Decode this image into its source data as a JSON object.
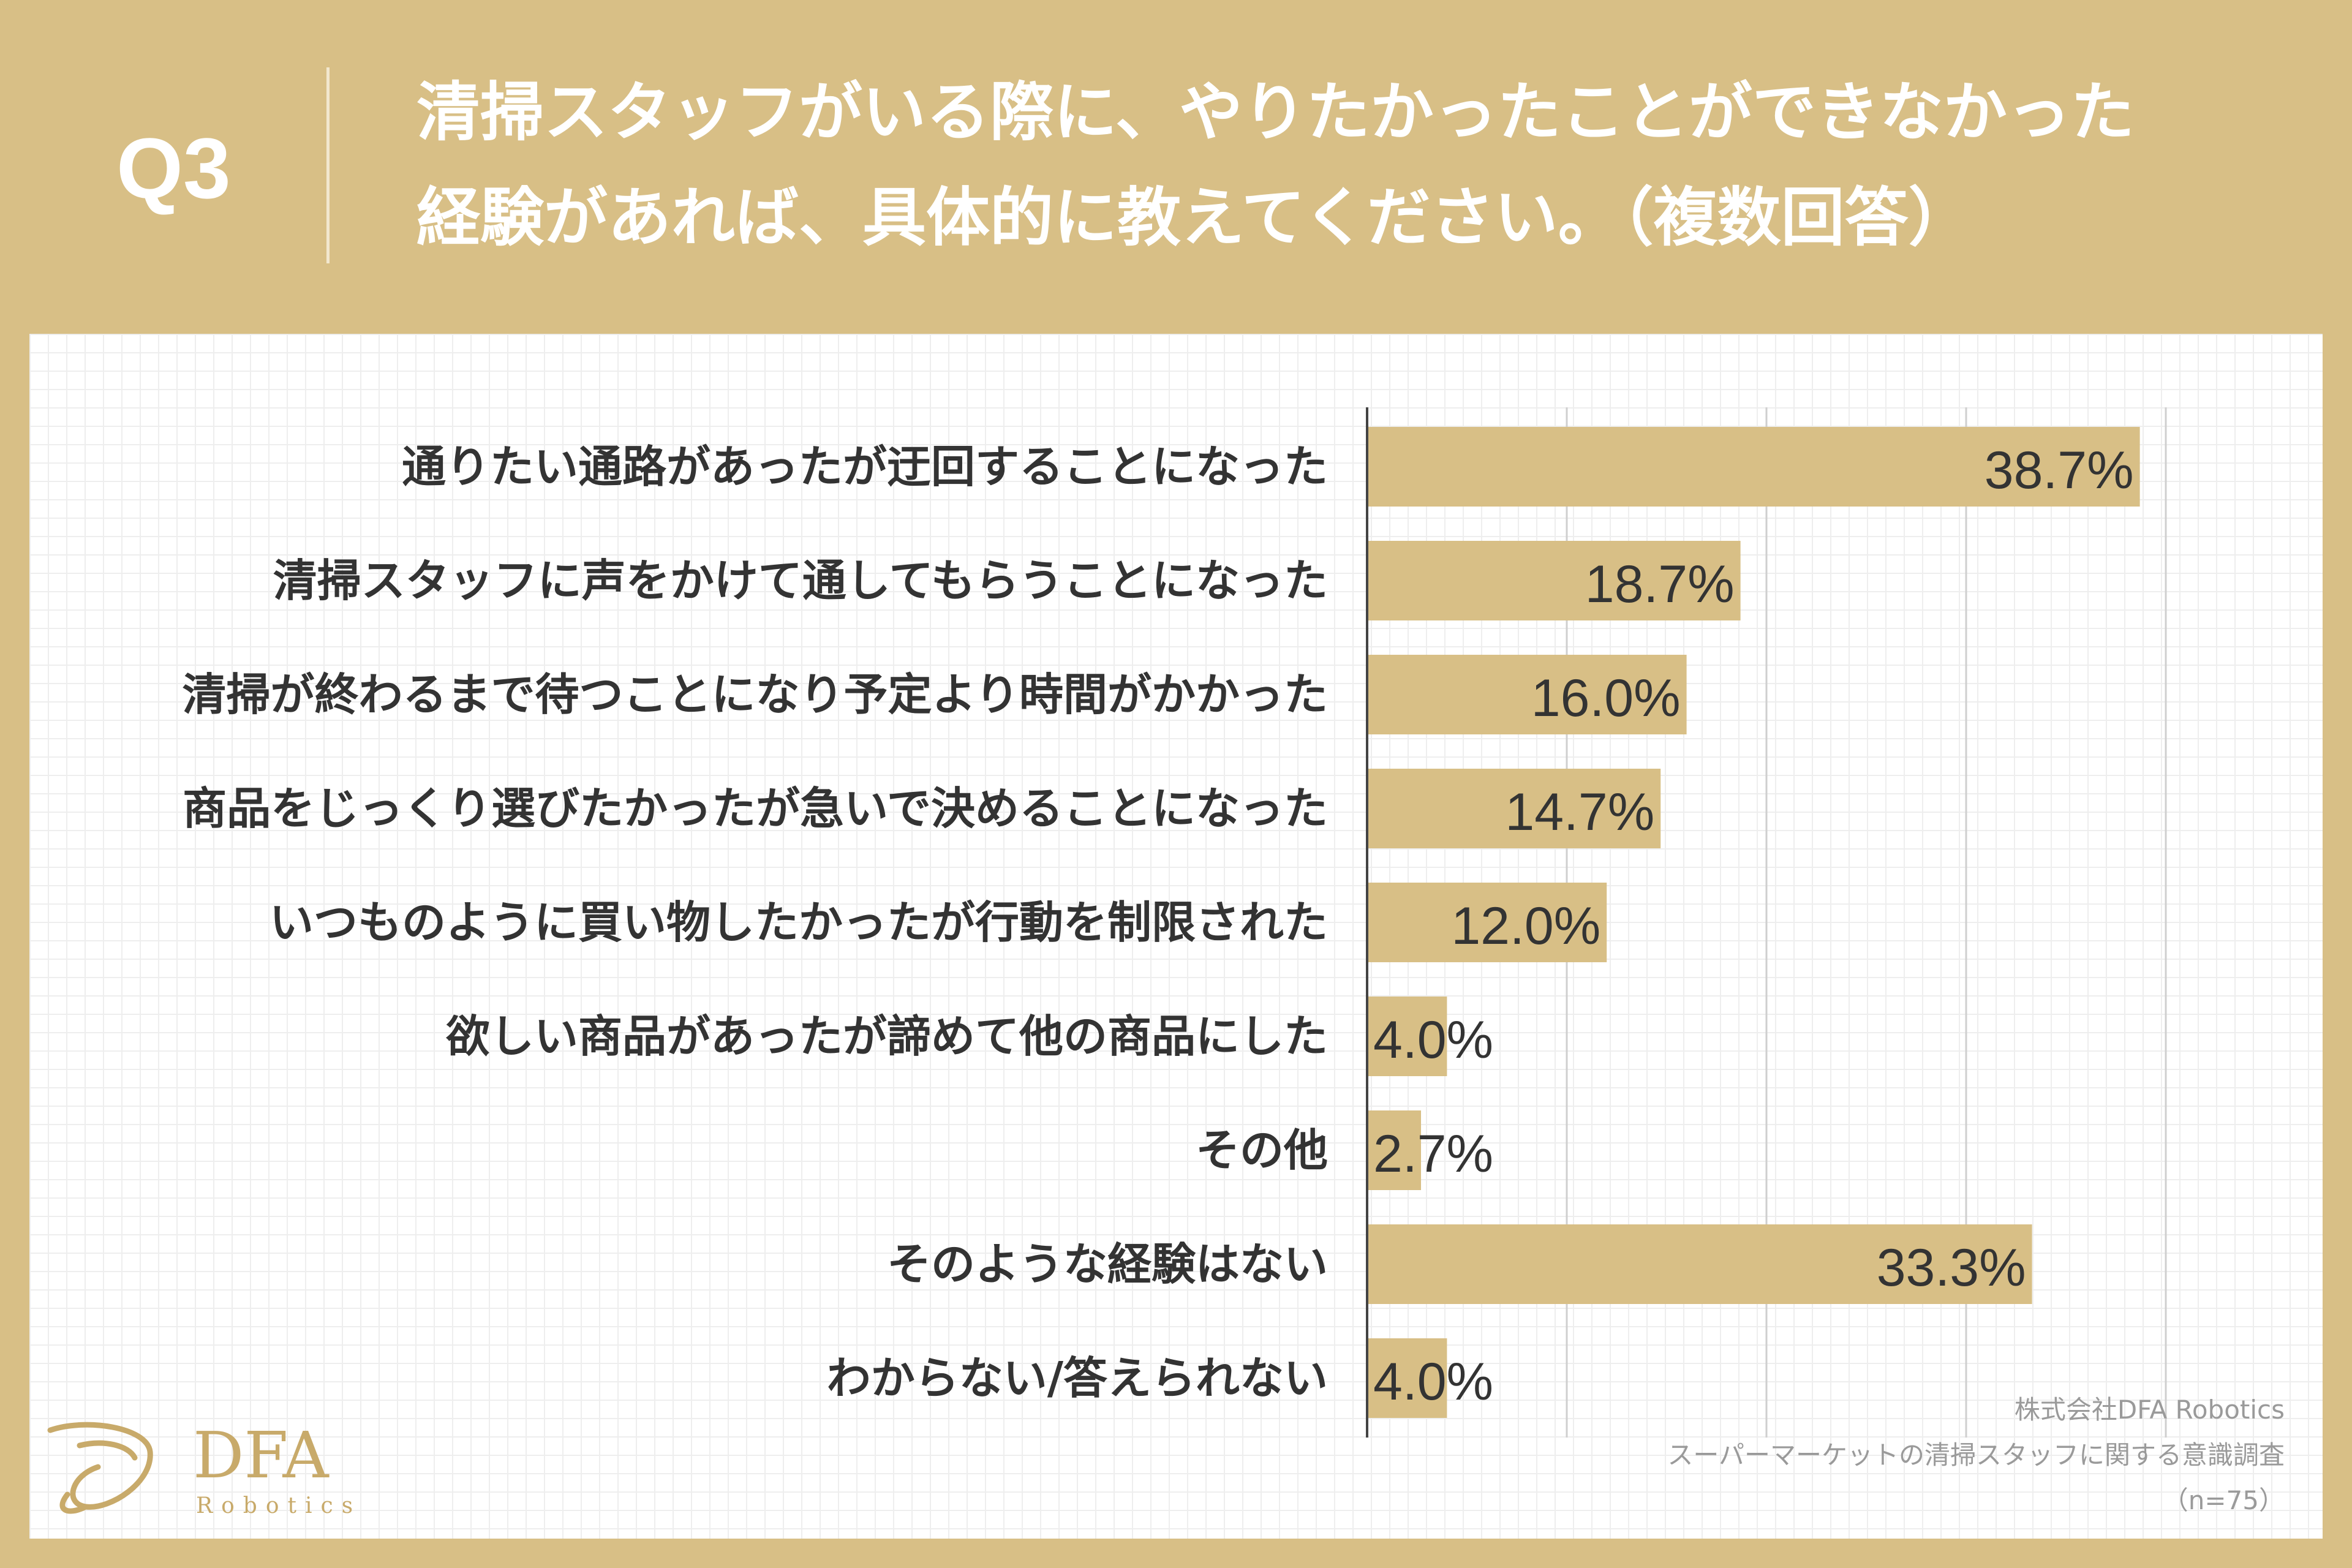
{
  "header": {
    "question_label": "Q3",
    "title_line_1": "清掃スタッフがいる際に、やりたかったことができなかった",
    "title_line_2": "経験があれば、具体的に教えてください。（複数回答）"
  },
  "chart_data": {
    "type": "bar",
    "orientation": "horizontal",
    "categories": [
      "通りたい通路があったが迂回することになった",
      "清掃スタッフに声をかけて通してもらうことになった",
      "清掃が終わるまで待つことになり予定より時間がかかった",
      "商品をじっくり選びたかったが急いで決めることになった",
      "いつものように買い物したかったが行動を制限された",
      "欲しい商品があったが諦めて他の商品にした",
      "その他",
      "そのような経験はない",
      "わからない/答えられない"
    ],
    "values": [
      38.7,
      18.7,
      16.0,
      14.7,
      12.0,
      4.0,
      2.7,
      33.3,
      4.0
    ],
    "value_labels": [
      "38.7%",
      "18.7%",
      "16.0%",
      "14.7%",
      "12.0%",
      "4.0%",
      "2.7%",
      "33.3%",
      "4.0%"
    ],
    "xlim": [
      0,
      40
    ],
    "gridlines": [
      10,
      20,
      30,
      40
    ],
    "bar_color": "#d8bf86"
  },
  "logo": {
    "name": "DFA",
    "sub": "Robotics"
  },
  "source": {
    "company": "株式会社DFA Robotics",
    "survey": "スーパーマーケットの清掃スタッフに関する意識調査",
    "sample": "（n=75）"
  },
  "colors": {
    "background": "#d8bf86",
    "panel": "#ffffff",
    "text": "#333333"
  }
}
